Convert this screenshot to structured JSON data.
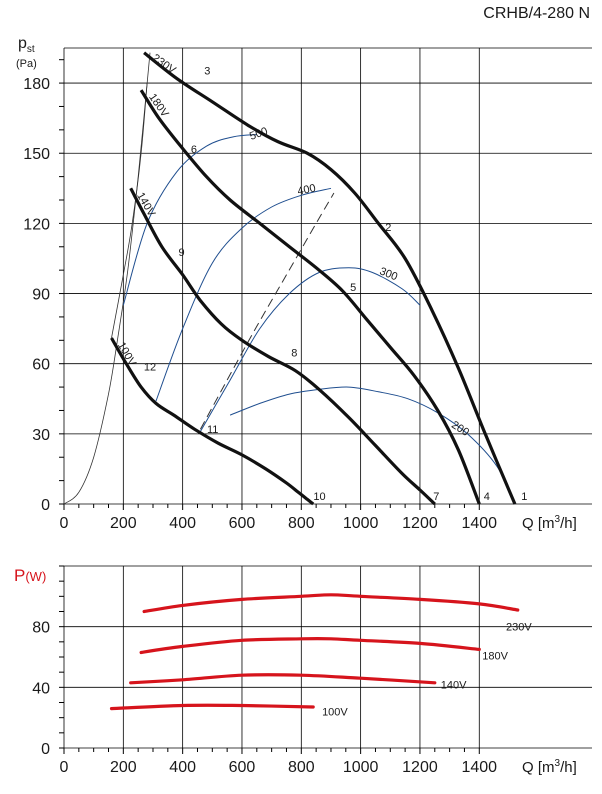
{
  "title": "CRHB/4-280 N",
  "colors": {
    "speed": "#111111",
    "rpm": "#1f4e8f",
    "power": "#d6141c",
    "system": "#333333"
  },
  "chart_data": [
    {
      "type": "line",
      "title": "CRHB/4-280 N",
      "ylabel_main": "p",
      "ylabel_sub": "st",
      "ylabel_unit": "(Pa)",
      "xlabel_main": "Q [m",
      "xlabel_sup": "3",
      "xlabel_end": "/h]",
      "xlim": [
        0,
        1780
      ],
      "ylim": [
        0,
        195
      ],
      "xticks": [
        0,
        200,
        400,
        600,
        800,
        1000,
        1200,
        1400
      ],
      "yticks": [
        0,
        30,
        60,
        90,
        120,
        150,
        180
      ],
      "speed_curves": [
        {
          "name": "230V",
          "label": "230V",
          "x": [
            270,
            380,
            500,
            620,
            720,
            820,
            900,
            980,
            1060,
            1150,
            1240,
            1330,
            1420,
            1520
          ],
          "y": [
            193,
            182,
            172,
            162,
            155,
            150,
            143,
            133,
            120,
            105,
            83,
            58,
            30,
            0
          ]
        },
        {
          "name": "180V",
          "label": "180V",
          "x": [
            260,
            320,
            400,
            480,
            560,
            660,
            760,
            860,
            940,
            1020,
            1100,
            1180,
            1260,
            1330,
            1400
          ],
          "y": [
            177,
            165,
            152,
            140,
            130,
            120,
            110,
            100,
            91,
            79,
            67,
            55,
            40,
            23,
            0
          ]
        },
        {
          "name": "140V",
          "label": "140V",
          "x": [
            225,
            270,
            330,
            400,
            460,
            530,
            600,
            690,
            780,
            860,
            960,
            1050,
            1140,
            1200,
            1250
          ],
          "y": [
            135,
            124,
            110,
            98,
            87,
            77,
            70,
            63,
            57,
            49,
            37,
            25,
            13,
            6,
            0
          ]
        },
        {
          "name": "100V",
          "label": "100V",
          "x": [
            160,
            210,
            260,
            310,
            370,
            440,
            520,
            600,
            680,
            750,
            790,
            820,
            840
          ],
          "y": [
            71,
            60,
            50,
            43,
            38,
            32,
            26,
            21,
            15,
            9,
            5,
            2,
            0
          ]
        }
      ],
      "rpm_curves": [
        {
          "name": "500",
          "label": "500",
          "x": [
            200,
            280,
            380,
            480,
            570,
            650
          ],
          "y": [
            85,
            120,
            142,
            153,
            157,
            158
          ]
        },
        {
          "name": "400",
          "label": "400",
          "x": [
            310,
            400,
            500,
            600,
            700,
            800,
            900
          ],
          "y": [
            44,
            75,
            103,
            118,
            127,
            132,
            135
          ]
        },
        {
          "name": "300",
          "label": "300",
          "x": [
            460,
            560,
            660,
            760,
            860,
            960,
            1040,
            1140,
            1200
          ],
          "y": [
            31,
            53,
            75,
            90,
            99,
            101,
            99,
            92,
            85
          ]
        },
        {
          "name": "200",
          "label": "200",
          "x": [
            560,
            660,
            760,
            860,
            960,
            1060,
            1160,
            1260,
            1360,
            1460,
            1520
          ],
          "y": [
            38,
            43,
            47,
            49,
            50,
            48,
            45,
            39,
            30,
            16,
            0
          ]
        }
      ],
      "system_curve_dashed": {
        "x": [
          460,
          550,
          650,
          750,
          850,
          910
        ],
        "y": [
          32,
          53,
          76,
          98,
          120,
          133
        ]
      },
      "system_curve_thin": {
        "x": [
          0,
          50,
          100,
          150,
          180,
          215,
          250,
          290
        ],
        "y": [
          0,
          5,
          20,
          47,
          70,
          100,
          140,
          193
        ]
      },
      "system_curve_right": {
        "x": [
          160,
          200,
          230,
          260,
          280
        ],
        "y": [
          71,
          98,
          120,
          150,
          180
        ]
      },
      "operating_points": [
        {
          "label": "1",
          "x": 1525,
          "y": 0
        },
        {
          "label": "2",
          "x": 1080,
          "y": 115
        },
        {
          "label": "3",
          "x": 490,
          "y": 182
        },
        {
          "label": "4",
          "x": 1405,
          "y": 0
        },
        {
          "label": "5",
          "x": 975,
          "y": 91
        },
        {
          "label": "6",
          "x": 465,
          "y": 150
        },
        {
          "label": "7",
          "x": 1255,
          "y": 0
        },
        {
          "label": "8",
          "x": 790,
          "y": 63
        },
        {
          "label": "9",
          "x": 410,
          "y": 107
        },
        {
          "label": "10",
          "x": 875,
          "y": 0
        },
        {
          "label": "11",
          "x": 535,
          "y": 32
        },
        {
          "label": "12",
          "x": 290,
          "y": 57
        }
      ]
    },
    {
      "type": "line",
      "ylabel_main": "P",
      "ylabel_sub": "(W)",
      "xlabel_main": "Q [m",
      "xlabel_sup": "3",
      "xlabel_end": "/h]",
      "xlim": [
        0,
        1780
      ],
      "ylim": [
        0,
        120
      ],
      "xticks": [
        0,
        200,
        400,
        600,
        800,
        1000,
        1200,
        1400
      ],
      "yticks": [
        0,
        40,
        80
      ],
      "series": [
        {
          "name": "230V",
          "x": [
            270,
            400,
            600,
            800,
            900,
            1000,
            1200,
            1400,
            1530
          ],
          "y": [
            90,
            94,
            98,
            100,
            101,
            100,
            98,
            95,
            91
          ]
        },
        {
          "name": "180V",
          "x": [
            260,
            400,
            600,
            800,
            900,
            1000,
            1200,
            1400
          ],
          "y": [
            63,
            67,
            71,
            72,
            72,
            71,
            69,
            65
          ]
        },
        {
          "name": "140V",
          "x": [
            225,
            400,
            600,
            800,
            1000,
            1250
          ],
          "y": [
            43,
            45,
            48,
            48,
            46,
            43
          ]
        },
        {
          "name": "100V",
          "x": [
            160,
            400,
            600,
            840
          ],
          "y": [
            26,
            28,
            28,
            27
          ]
        }
      ]
    }
  ]
}
